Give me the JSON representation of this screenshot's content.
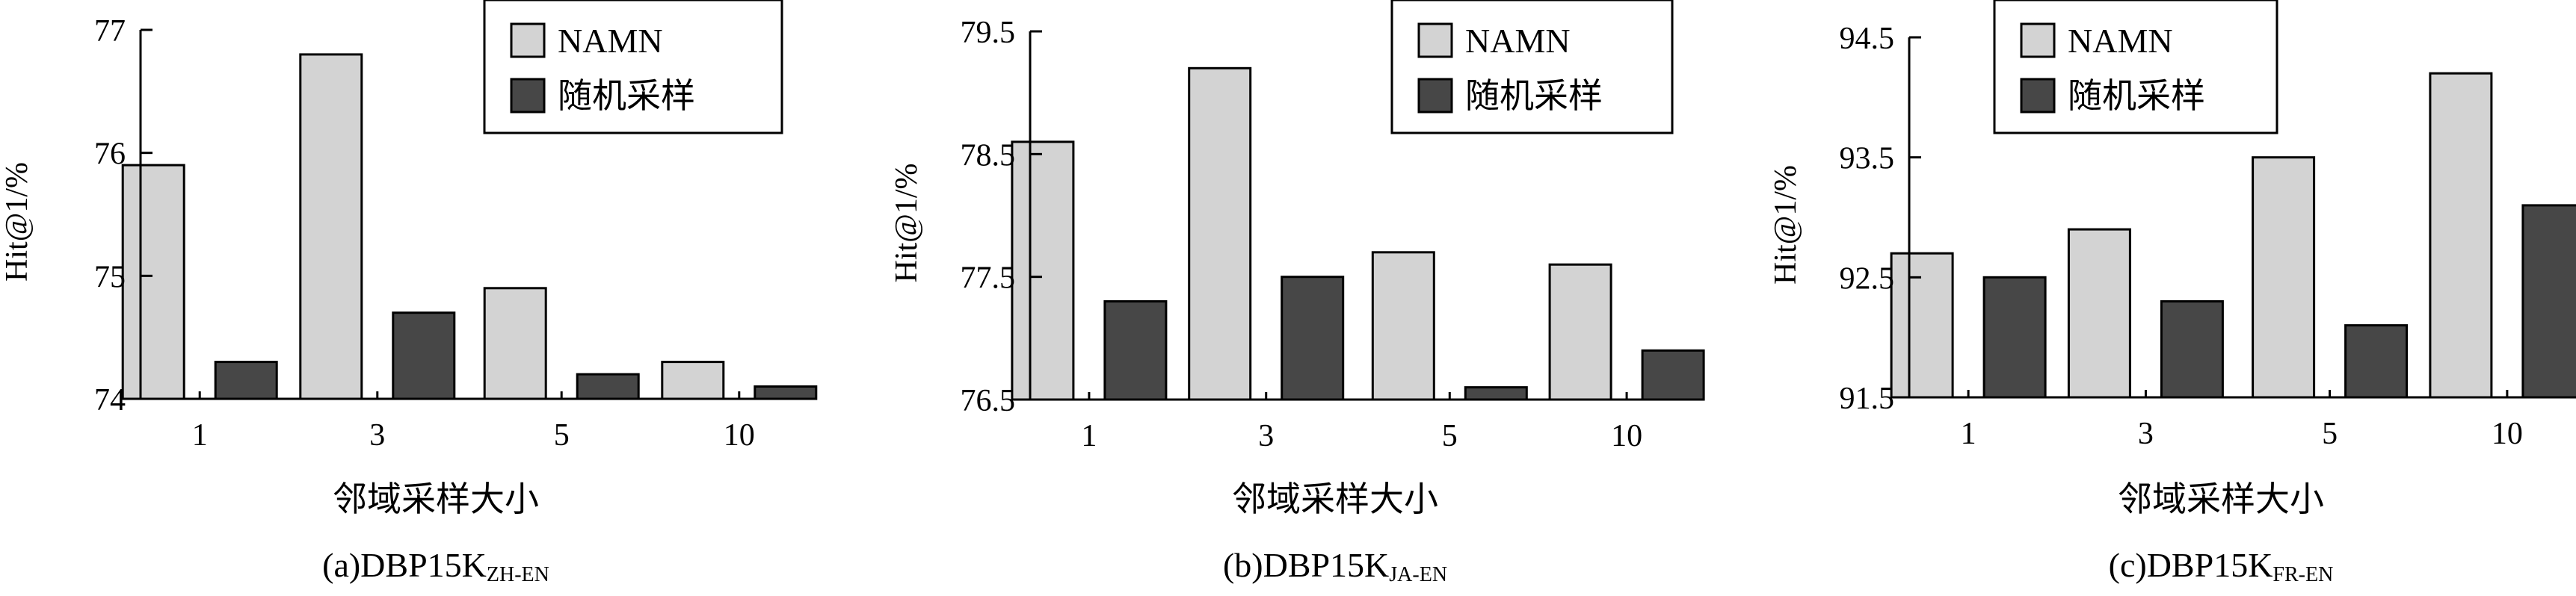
{
  "legend": {
    "series_a": "NAMN",
    "series_b": "随机采样"
  },
  "colors": {
    "series_a": "#d3d3d3",
    "series_b": "#474747",
    "stroke": "#000000"
  },
  "chart_data": [
    {
      "type": "bar",
      "caption_main": "(a)DBP15K",
      "caption_sub": "ZH-EN",
      "xlabel": "邻域采样大小",
      "ylabel": "Hit@1/%",
      "categories": [
        "1",
        "3",
        "5",
        "10"
      ],
      "ylim": [
        74,
        77
      ],
      "yticks": [
        74,
        75,
        76,
        77
      ],
      "ytick_labels": [
        "74",
        "75",
        "76",
        "77"
      ],
      "legend_position": "top-right",
      "series": [
        {
          "name": "NAMN",
          "values": [
            75.9,
            76.8,
            74.9,
            74.3
          ]
        },
        {
          "name": "随机采样",
          "values": [
            74.3,
            74.7,
            74.2,
            74.1
          ]
        }
      ]
    },
    {
      "type": "bar",
      "caption_main": "(b)DBP15K",
      "caption_sub": "JA-EN",
      "xlabel": "邻域采样大小",
      "ylabel": "Hit@1/%",
      "categories": [
        "1",
        "3",
        "5",
        "10"
      ],
      "ylim": [
        76.5,
        79.5
      ],
      "yticks": [
        76.5,
        77.5,
        78.5,
        79.5
      ],
      "ytick_labels": [
        "76.5",
        "77.5",
        "78.5",
        "79.5"
      ],
      "legend_position": "top-right",
      "series": [
        {
          "name": "NAMN",
          "values": [
            78.6,
            79.2,
            77.7,
            77.6
          ]
        },
        {
          "name": "随机采样",
          "values": [
            77.3,
            77.5,
            76.6,
            76.9
          ]
        }
      ]
    },
    {
      "type": "bar",
      "caption_main": "(c)DBP15K",
      "caption_sub": "FR-EN",
      "xlabel": "邻域采样大小",
      "ylabel": "Hit@1/%",
      "categories": [
        "1",
        "3",
        "5",
        "10"
      ],
      "ylim": [
        91.5,
        94.5
      ],
      "yticks": [
        91.5,
        92.5,
        93.5,
        94.5
      ],
      "ytick_labels": [
        "91.5",
        "92.5",
        "93.5",
        "94.5"
      ],
      "legend_position": "top-right",
      "series": [
        {
          "name": "NAMN",
          "values": [
            92.7,
            92.9,
            93.5,
            94.2
          ]
        },
        {
          "name": "随机采样",
          "values": [
            92.5,
            92.3,
            92.1,
            93.1
          ]
        }
      ]
    }
  ]
}
